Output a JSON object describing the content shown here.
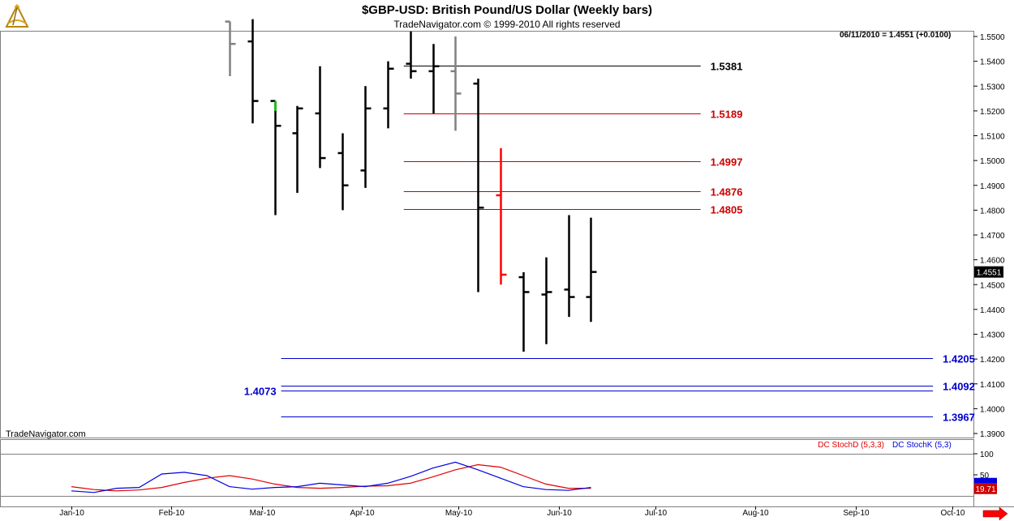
{
  "header": {
    "title": "$GBP-USD:  British Pound/US Dollar  (Weekly bars)",
    "subtitle": "TradeNavigator.com © 1999-2010 All rights reserved"
  },
  "watermark": "TradeNavigator.com",
  "last_quote": "06/11/2010 = 1.4551 (+0.0100)",
  "price_badge": "1.4551",
  "stoch_badge_d": "19.71",
  "colors": {
    "bar": "#000000",
    "bar_prior": "#808080",
    "bar_up_tick": "#00cc00",
    "highlight_bar": "#ff0000",
    "black_level": "#000000",
    "red_level": "#cc0000",
    "blue_level": "#0000cc",
    "stoch_d": "#e00000",
    "stoch_k": "#0000e0",
    "badge_d_bg": "#cc0000"
  },
  "chart_data": [
    {
      "type": "ohlc",
      "title": "$GBP-USD:  British Pound/US Dollar  (Weekly bars)",
      "y_axis_side": "right",
      "ylim": [
        1.388,
        1.554
      ],
      "y_ticks": [
        "1.5500",
        "1.5400",
        "1.5300",
        "1.5200",
        "1.5100",
        "1.5000",
        "1.4900",
        "1.4800",
        "1.4700",
        "1.4600",
        "1.4500",
        "1.4400",
        "1.4300",
        "1.4200",
        "1.4100",
        "1.4000",
        "1.3900"
      ],
      "x_ticks": [
        "Jan-10",
        "Feb-10",
        "Mar-10",
        "Apr-10",
        "May-10",
        "Jun-10",
        "Jul-10",
        "Aug-10",
        "Sep-10",
        "Oct-10"
      ],
      "x_tick_dates": [
        "2010-01-01",
        "2010-02-01",
        "2010-03-01",
        "2010-04-01",
        "2010-05-01",
        "2010-06-01",
        "2010-07-01",
        "2010-08-01",
        "2010-09-01",
        "2010-10-01"
      ],
      "bars": [
        {
          "date": "2010-02-19",
          "open": 1.556,
          "high": 1.556,
          "low": 1.534,
          "close": 1.547,
          "style": "gray"
        },
        {
          "date": "2010-02-26",
          "open": 1.548,
          "high": 1.557,
          "low": 1.515,
          "close": 1.524,
          "style": "black"
        },
        {
          "date": "2010-03-05",
          "open": 1.524,
          "high": 1.524,
          "low": 1.478,
          "close": 1.514,
          "style": "black"
        },
        {
          "date": "2010-03-12",
          "open": 1.511,
          "high": 1.522,
          "low": 1.487,
          "close": 1.521,
          "style": "black"
        },
        {
          "date": "2010-03-19",
          "open": 1.519,
          "high": 1.538,
          "low": 1.497,
          "close": 1.501,
          "style": "black"
        },
        {
          "date": "2010-03-26",
          "open": 1.503,
          "high": 1.511,
          "low": 1.48,
          "close": 1.49,
          "style": "black"
        },
        {
          "date": "2010-04-02",
          "open": 1.496,
          "high": 1.53,
          "low": 1.489,
          "close": 1.521,
          "style": "black"
        },
        {
          "date": "2010-04-09",
          "open": 1.521,
          "high": 1.54,
          "low": 1.513,
          "close": 1.537,
          "style": "black"
        },
        {
          "date": "2010-04-16",
          "open": 1.539,
          "high": 1.552,
          "low": 1.533,
          "close": 1.536,
          "style": "black"
        },
        {
          "date": "2010-04-23",
          "open": 1.536,
          "high": 1.547,
          "low": 1.519,
          "close": 1.538,
          "style": "black"
        },
        {
          "date": "2010-04-30",
          "open": 1.536,
          "high": 1.55,
          "low": 1.512,
          "close": 1.527,
          "style": "gray"
        },
        {
          "date": "2010-05-07",
          "open": 1.531,
          "high": 1.533,
          "low": 1.447,
          "close": 1.481,
          "style": "black"
        },
        {
          "date": "2010-05-14",
          "open": 1.486,
          "high": 1.505,
          "low": 1.45,
          "close": 1.454,
          "style": "red"
        },
        {
          "date": "2010-05-21",
          "open": 1.453,
          "high": 1.455,
          "low": 1.423,
          "close": 1.447,
          "style": "black"
        },
        {
          "date": "2010-05-28",
          "open": 1.446,
          "high": 1.461,
          "low": 1.426,
          "close": 1.447,
          "style": "black"
        },
        {
          "date": "2010-06-04",
          "open": 1.448,
          "high": 1.478,
          "low": 1.437,
          "close": 1.445,
          "style": "black"
        },
        {
          "date": "2010-06-11",
          "open": 1.445,
          "high": 1.477,
          "low": 1.435,
          "close": 1.4551,
          "style": "black"
        }
      ],
      "levels": [
        {
          "value": 1.5381,
          "label": "1.5381",
          "color": "black",
          "from": "2010-04-14",
          "to": "2010-07-15",
          "label_side": "right"
        },
        {
          "value": 1.5189,
          "label": "1.5189",
          "color": "red",
          "from": "2010-04-14",
          "to": "2010-07-15",
          "label_side": "right"
        },
        {
          "value": 1.4997,
          "label": "1.4997",
          "color": "red",
          "from": "2010-04-14",
          "to": "2010-07-15",
          "label_side": "right"
        },
        {
          "value": 1.4876,
          "label": "1.4876",
          "color": "red",
          "from": "2010-04-14",
          "to": "2010-07-15",
          "label_side": "right"
        },
        {
          "value": 1.4805,
          "label": "1.4805",
          "color": "red",
          "from": "2010-04-14",
          "to": "2010-07-15",
          "label_side": "right"
        },
        {
          "value": 1.4205,
          "label": "1.4205",
          "color": "blue",
          "from": "2010-03-07",
          "to": "2010-09-25",
          "label_side": "right"
        },
        {
          "value": 1.4092,
          "label": "1.4092",
          "color": "blue",
          "from": "2010-03-07",
          "to": "2010-09-25",
          "label_side": "right"
        },
        {
          "value": 1.4073,
          "label": "1.4073",
          "color": "blue",
          "from": "2010-03-07",
          "to": "2010-09-25",
          "label_side": "left"
        },
        {
          "value": 1.3967,
          "label": "1.3967",
          "color": "blue",
          "from": "2010-03-07",
          "to": "2010-09-25",
          "label_side": "right"
        }
      ]
    },
    {
      "type": "line",
      "legend": [
        {
          "name": "DC StochD (5,3,3)",
          "color": "red"
        },
        {
          "name": "DC StochK (5,3)",
          "color": "blue"
        }
      ],
      "ylim": [
        0,
        100
      ],
      "y_ticks": [
        "100",
        "50"
      ],
      "series": [
        {
          "name": "DC StochD (5,3,3)",
          "x": [
            "2010-01-01",
            "2010-01-08",
            "2010-01-15",
            "2010-01-22",
            "2010-01-29",
            "2010-02-05",
            "2010-02-12",
            "2010-02-19",
            "2010-02-26",
            "2010-03-05",
            "2010-03-12",
            "2010-03-19",
            "2010-03-26",
            "2010-04-02",
            "2010-04-09",
            "2010-04-16",
            "2010-04-23",
            "2010-04-30",
            "2010-05-07",
            "2010-05-14",
            "2010-05-21",
            "2010-05-28",
            "2010-06-04",
            "2010-06-11"
          ],
          "values": [
            22,
            15,
            12,
            14,
            20,
            32,
            42,
            48,
            40,
            28,
            20,
            18,
            20,
            23,
            24,
            30,
            45,
            62,
            74,
            68,
            48,
            28,
            18,
            18
          ]
        },
        {
          "name": "DC StochK (5,3)",
          "x": [
            "2010-01-01",
            "2010-01-08",
            "2010-01-15",
            "2010-01-22",
            "2010-01-29",
            "2010-02-05",
            "2010-02-12",
            "2010-02-19",
            "2010-02-26",
            "2010-03-05",
            "2010-03-12",
            "2010-03-19",
            "2010-03-26",
            "2010-04-02",
            "2010-04-09",
            "2010-04-16",
            "2010-04-23",
            "2010-04-30",
            "2010-05-07",
            "2010-05-14",
            "2010-05-21",
            "2010-05-28",
            "2010-06-04",
            "2010-06-11"
          ],
          "values": [
            12,
            8,
            18,
            20,
            52,
            56,
            48,
            22,
            16,
            20,
            22,
            30,
            26,
            22,
            30,
            46,
            66,
            80,
            62,
            42,
            22,
            15,
            13,
            20
          ]
        }
      ]
    }
  ]
}
